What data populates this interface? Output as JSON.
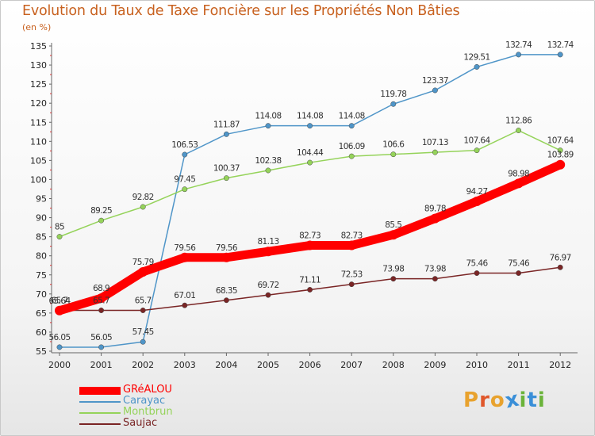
{
  "header": {
    "title": "Evolution du Taux de Taxe Foncière sur les Propriétés Non Bâties",
    "unit": "(en %)"
  },
  "logo": {
    "letters": [
      "P",
      "r",
      "o",
      "x",
      "i",
      "t",
      "i"
    ],
    "text": "Proxiti"
  },
  "colors": {
    "title": "#c8611f",
    "series": [
      "#ff0000",
      "#4f95c8",
      "#95d35a",
      "#7a2525"
    ],
    "logo": [
      "#e8a22e",
      "#e0572b",
      "#e8a22e",
      "#3a8fd8",
      "#6bb33a",
      "#3a8fd8",
      "#6bb33a"
    ]
  },
  "chart_data": {
    "type": "line",
    "title": "Evolution du Taux de Taxe Foncière sur les Propriétés Non Bâties",
    "ylabel": "(en %)",
    "xlabel": "",
    "x": [
      "2000",
      "2001",
      "2002",
      "2003",
      "2004",
      "2005",
      "2006",
      "2007",
      "2008",
      "2009",
      "2010",
      "2011",
      "2012"
    ],
    "ylim": [
      55,
      135
    ],
    "ystep": 5,
    "grid": false,
    "legend_position": "bottom-left",
    "series": [
      {
        "name": "GRéALOU",
        "values": [
          65.64,
          68.9,
          75.79,
          79.56,
          79.56,
          81.13,
          82.73,
          82.73,
          85.5,
          89.78,
          94.27,
          98.98,
          103.89
        ],
        "labels": [
          "65.64",
          "68.9",
          "75.79",
          "79.56",
          "79.56",
          "81.13",
          "82.73",
          "82.73",
          "85.5",
          "89.78",
          "94.27",
          "98.98",
          "103.89"
        ]
      },
      {
        "name": "Carayac",
        "values": [
          56.05,
          56.05,
          57.45,
          106.53,
          111.87,
          114.08,
          114.08,
          114.08,
          119.78,
          123.37,
          129.51,
          132.74,
          132.74
        ],
        "labels": [
          "56.05",
          "56.05",
          "57.45",
          "106.53",
          "111.87",
          "114.08",
          "114.08",
          "114.08",
          "119.78",
          "123.37",
          "129.51",
          "132.74",
          "132.74"
        ]
      },
      {
        "name": "Montbrun",
        "values": [
          85,
          89.25,
          92.82,
          97.45,
          100.37,
          102.38,
          104.44,
          106.09,
          106.6,
          107.13,
          107.64,
          112.86,
          107.64
        ],
        "labels": [
          "85",
          "89.25",
          "92.82",
          "97.45",
          "100.37",
          "102.38",
          "104.44",
          "106.09",
          "106.6",
          "107.13",
          "107.64",
          "112.86",
          "107.64"
        ]
      },
      {
        "name": "Saujac",
        "values": [
          65.7,
          65.7,
          65.7,
          67.01,
          68.35,
          69.72,
          71.11,
          72.53,
          73.98,
          73.98,
          75.46,
          75.46,
          76.97
        ],
        "labels": [
          "65.7",
          "65.7",
          "65.7",
          "67.01",
          "68.35",
          "69.72",
          "71.11",
          "72.53",
          "73.98",
          "73.98",
          "75.46",
          "75.46",
          "76.97"
        ]
      }
    ]
  }
}
